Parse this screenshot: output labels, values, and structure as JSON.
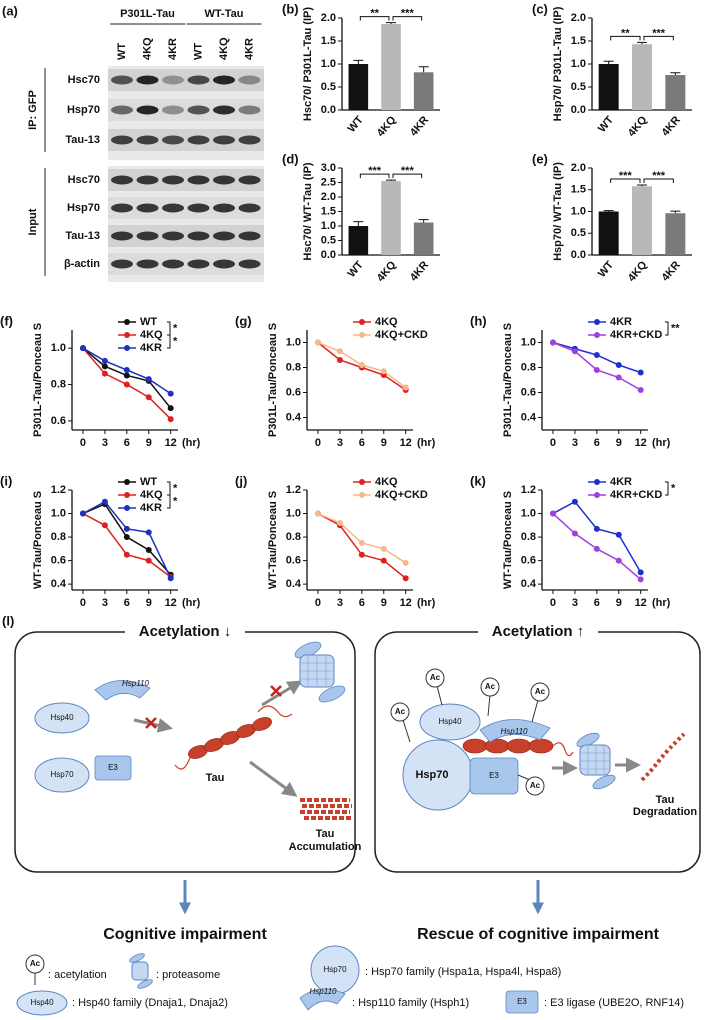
{
  "blot": {
    "panel_label": "(a)",
    "groups": [
      "P301L-Tau",
      "WT-Tau"
    ],
    "lanes": [
      "WT",
      "4KQ",
      "4KR",
      "WT",
      "4KQ",
      "4KR"
    ],
    "ip_label": "IP: GFP",
    "ip_rows": [
      "Hsc70",
      "Hsp70",
      "Tau-13"
    ],
    "input_label": "Input",
    "input_rows": [
      "Hsc70",
      "Hsp70",
      "Tau-13",
      "β-actin"
    ]
  },
  "chart_data": [
    {
      "type": "bar",
      "panel_label": "(b)",
      "ylabel": "Hsc70/ P301L-Tau (IP)",
      "categories": [
        "WT",
        "4KQ",
        "4KR"
      ],
      "values": [
        1.0,
        1.87,
        0.82
      ],
      "errors": [
        0.08,
        0.03,
        0.12
      ],
      "colors": [
        "#111111",
        "#b8b8b8",
        "#7a7a7a"
      ],
      "ylim": [
        0,
        2.0
      ],
      "yticks": [
        {
          "value": 0,
          "label": "0.0"
        },
        0.5,
        {
          "value": 1,
          "label": "1.0"
        },
        1.5,
        {
          "value": 2,
          "label": "2.0"
        }
      ],
      "significance": [
        "**",
        "***"
      ]
    },
    {
      "type": "bar",
      "panel_label": "(c)",
      "ylabel": "Hsp70/ P301L-Tau (IP)",
      "categories": [
        "WT",
        "4KQ",
        "4KR"
      ],
      "values": [
        1.0,
        1.43,
        0.76
      ],
      "errors": [
        0.06,
        0.04,
        0.05
      ],
      "colors": [
        "#111111",
        "#b8b8b8",
        "#7a7a7a"
      ],
      "ylim": [
        0,
        2.0
      ],
      "yticks": [
        {
          "value": 0,
          "label": "0.0"
        },
        0.5,
        {
          "value": 1,
          "label": "1.0"
        },
        1.5,
        {
          "value": 2,
          "label": "2.0"
        }
      ],
      "significance": [
        "**",
        "***"
      ]
    },
    {
      "type": "bar",
      "panel_label": "(d)",
      "ylabel": "Hsc70/ WT-Tau (IP)",
      "categories": [
        "WT",
        "4KQ",
        "4KR"
      ],
      "values": [
        1.0,
        2.55,
        1.12
      ],
      "errors": [
        0.15,
        0.03,
        0.1
      ],
      "colors": [
        "#111111",
        "#b8b8b8",
        "#7a7a7a"
      ],
      "ylim": [
        0,
        3.0
      ],
      "yticks": [
        {
          "value": 0,
          "label": "0.0"
        },
        0.5,
        {
          "value": 1,
          "label": "1.0"
        },
        1.5,
        {
          "value": 2,
          "label": "2.0"
        },
        2.5,
        {
          "value": 3,
          "label": "3.0"
        }
      ],
      "significance": [
        "***",
        "***"
      ]
    },
    {
      "type": "bar",
      "panel_label": "(e)",
      "ylabel": "Hsp70/ WT-Tau (IP)",
      "categories": [
        "WT",
        "4KQ",
        "4KR"
      ],
      "values": [
        1.0,
        1.58,
        0.96
      ],
      "errors": [
        0.02,
        0.03,
        0.05
      ],
      "colors": [
        "#111111",
        "#b8b8b8",
        "#7a7a7a"
      ],
      "ylim": [
        0,
        2.0
      ],
      "yticks": [
        {
          "value": 0,
          "label": "0.0"
        },
        0.5,
        {
          "value": 1,
          "label": "1.0"
        },
        1.5,
        {
          "value": 2,
          "label": "2.0"
        }
      ],
      "significance": [
        "***",
        "***"
      ]
    },
    {
      "type": "line",
      "panel_label": "(f)",
      "ylabel": "P301L-Tau/Ponceau S",
      "xlabel": "(hr)",
      "x": [
        0,
        3,
        6,
        9,
        12
      ],
      "xlim": [
        -1.5,
        13
      ],
      "xticks": [
        0,
        3,
        6,
        9,
        12
      ],
      "ylim": [
        0.55,
        1.1
      ],
      "yticks": [
        0.6,
        0.8,
        {
          "value": 1,
          "label": "1.0"
        }
      ],
      "legend": "upper right",
      "series": [
        {
          "name": "WT",
          "color": "#111111",
          "values": [
            1.0,
            0.9,
            0.85,
            0.82,
            0.67
          ]
        },
        {
          "name": "4KQ",
          "color": "#e02020",
          "values": [
            1.0,
            0.86,
            0.8,
            0.73,
            0.61
          ]
        },
        {
          "name": "4KR",
          "color": "#2030c0",
          "values": [
            1.0,
            0.93,
            0.88,
            0.83,
            0.75
          ]
        }
      ],
      "significance": [
        "*",
        "*"
      ]
    },
    {
      "type": "line",
      "panel_label": "(g)",
      "ylabel": "P301L-Tau/Ponceau S",
      "xlabel": "(hr)",
      "x": [
        0,
        3,
        6,
        9,
        12
      ],
      "xlim": [
        -1.5,
        13
      ],
      "xticks": [
        0,
        3,
        6,
        9,
        12
      ],
      "ylim": [
        0.3,
        1.1
      ],
      "yticks": [
        0.4,
        0.6,
        0.8,
        {
          "value": 1,
          "label": "1.0"
        }
      ],
      "legend": "upper right",
      "series": [
        {
          "name": "4KQ",
          "color": "#e02020",
          "values": [
            1.0,
            0.86,
            0.8,
            0.74,
            0.62
          ]
        },
        {
          "name": "4KQ+CKD",
          "color": "#f5b888",
          "values": [
            1.0,
            0.93,
            0.82,
            0.77,
            0.64
          ]
        }
      ],
      "significance": []
    },
    {
      "type": "line",
      "panel_label": "(h)",
      "ylabel": "P301L-Tau/Ponceau S",
      "xlabel": "(hr)",
      "x": [
        0,
        3,
        6,
        9,
        12
      ],
      "xlim": [
        -1.5,
        13
      ],
      "xticks": [
        0,
        3,
        6,
        9,
        12
      ],
      "ylim": [
        0.3,
        1.1
      ],
      "yticks": [
        0.4,
        0.6,
        0.8,
        {
          "value": 1,
          "label": "1.0"
        }
      ],
      "legend": "upper right",
      "series": [
        {
          "name": "4KR",
          "color": "#2030d0",
          "values": [
            1.0,
            0.95,
            0.9,
            0.82,
            0.76
          ]
        },
        {
          "name": "4KR+CKD",
          "color": "#a040e0",
          "values": [
            1.0,
            0.93,
            0.78,
            0.72,
            0.62
          ]
        }
      ],
      "significance": [
        "**"
      ]
    },
    {
      "type": "line",
      "panel_label": "(i)",
      "ylabel": "WT-Tau/Ponceau S",
      "xlabel": "(hr)",
      "x": [
        0,
        3,
        6,
        9,
        12
      ],
      "xlim": [
        -1.5,
        13
      ],
      "xticks": [
        0,
        3,
        6,
        9,
        12
      ],
      "ylim": [
        0.35,
        1.2
      ],
      "yticks": [
        0.4,
        0.6,
        0.8,
        {
          "value": 1,
          "label": "1.0"
        },
        1.2
      ],
      "legend": "upper right",
      "series": [
        {
          "name": "WT",
          "color": "#111111",
          "values": [
            1.0,
            1.08,
            0.8,
            0.69,
            0.48
          ]
        },
        {
          "name": "4KQ",
          "color": "#e02020",
          "values": [
            1.0,
            0.9,
            0.65,
            0.6,
            0.46
          ]
        },
        {
          "name": "4KR",
          "color": "#2030c0",
          "values": [
            1.0,
            1.1,
            0.87,
            0.84,
            0.45
          ]
        }
      ],
      "significance": [
        "*",
        "*"
      ]
    },
    {
      "type": "line",
      "panel_label": "(j)",
      "ylabel": "WT-Tau/Ponceau S",
      "xlabel": "(hr)",
      "x": [
        0,
        3,
        6,
        9,
        12
      ],
      "xlim": [
        -1.5,
        13
      ],
      "xticks": [
        0,
        3,
        6,
        9,
        12
      ],
      "ylim": [
        0.35,
        1.2
      ],
      "yticks": [
        0.4,
        0.6,
        0.8,
        {
          "value": 1,
          "label": "1.0"
        },
        1.2
      ],
      "legend": "upper right",
      "series": [
        {
          "name": "4KQ",
          "color": "#e02020",
          "values": [
            1.0,
            0.9,
            0.65,
            0.6,
            0.45
          ]
        },
        {
          "name": "4KQ+CKD",
          "color": "#f5b888",
          "values": [
            1.0,
            0.92,
            0.75,
            0.7,
            0.58
          ]
        }
      ],
      "significance": []
    },
    {
      "type": "line",
      "panel_label": "(k)",
      "ylabel": "WT-Tau/Ponceau S",
      "xlabel": "(hr)",
      "x": [
        0,
        3,
        6,
        9,
        12
      ],
      "xlim": [
        -1.5,
        13
      ],
      "xticks": [
        0,
        3,
        6,
        9,
        12
      ],
      "ylim": [
        0.35,
        1.2
      ],
      "yticks": [
        0.4,
        0.6,
        0.8,
        {
          "value": 1,
          "label": "1.0"
        },
        1.2
      ],
      "legend": "upper right",
      "series": [
        {
          "name": "4KR",
          "color": "#2030d0",
          "values": [
            1.0,
            1.1,
            0.87,
            0.82,
            0.5
          ]
        },
        {
          "name": "4KR+CKD",
          "color": "#a040e0",
          "values": [
            1.0,
            0.83,
            0.7,
            0.6,
            0.44
          ]
        }
      ],
      "significance": [
        "*"
      ]
    }
  ],
  "diagram": {
    "panel_label": "(l)",
    "left": {
      "title": "Acetylation ↓",
      "hsp110": "Hsp110",
      "hsp40": "Hsp40",
      "hsp70": "Hsp70",
      "e3": "E3",
      "tau": "Tau",
      "accumulation": [
        "Tau",
        "Accumulation"
      ],
      "outcome": "Cognitive impairment"
    },
    "right": {
      "title": "Acetylation ↑",
      "ac": "Ac",
      "hsp40": "Hsp40",
      "hsp110": "Hsp110",
      "hsp70": "Hsp70",
      "e3": "E3",
      "degradation": [
        "Tau",
        "Degradation"
      ],
      "outcome": "Rescue of cognitive impairment"
    },
    "legend": {
      "ac": "Ac",
      "acetylation": ": acetylation",
      "proteasome": ": proteasome",
      "hsp70": "Hsp70",
      "hsp70_text": ": Hsp70 family (Hspa1a, Hspa4l, Hspa8)",
      "hsp40": "Hsp40",
      "hsp40_text": ": Hsp40 family (Dnaja1, Dnaja2)",
      "hsp110": "Hsp110",
      "hsp110_text": ": Hsp110 family (Hsph1)",
      "e3": "E3",
      "e3_text": ": E3 ligase (UBE2O, RNF14)"
    }
  }
}
